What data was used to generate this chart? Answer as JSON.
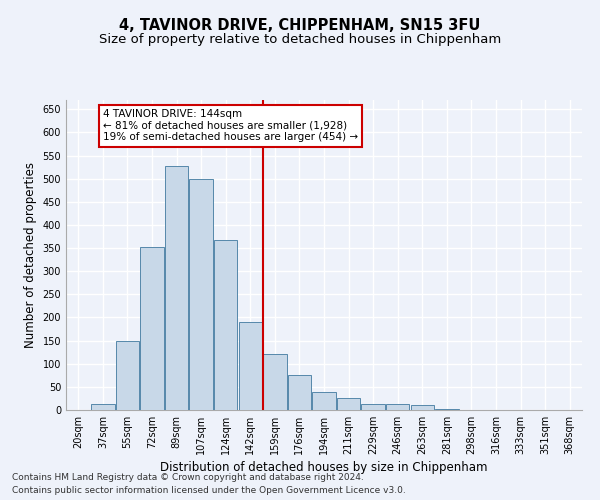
{
  "title": "4, TAVINOR DRIVE, CHIPPENHAM, SN15 3FU",
  "subtitle": "Size of property relative to detached houses in Chippenham",
  "xlabel": "Distribution of detached houses by size in Chippenham",
  "ylabel": "Number of detached properties",
  "categories": [
    "20sqm",
    "37sqm",
    "55sqm",
    "72sqm",
    "89sqm",
    "107sqm",
    "124sqm",
    "142sqm",
    "159sqm",
    "176sqm",
    "194sqm",
    "211sqm",
    "229sqm",
    "246sqm",
    "263sqm",
    "281sqm",
    "298sqm",
    "316sqm",
    "333sqm",
    "351sqm",
    "368sqm"
  ],
  "values": [
    0,
    12,
    150,
    353,
    528,
    500,
    368,
    190,
    122,
    75,
    38,
    26,
    12,
    12,
    10,
    2,
    0,
    0,
    0,
    0,
    0
  ],
  "bar_color": "#c8d8e8",
  "bar_edge_color": "#5588aa",
  "vline_x_index": 7,
  "vline_color": "#cc0000",
  "annotation_text": "4 TAVINOR DRIVE: 144sqm\n← 81% of detached houses are smaller (1,928)\n19% of semi-detached houses are larger (454) →",
  "annotation_box_color": "#ffffff",
  "annotation_box_edge_color": "#cc0000",
  "ylim": [
    0,
    670
  ],
  "yticks": [
    0,
    50,
    100,
    150,
    200,
    250,
    300,
    350,
    400,
    450,
    500,
    550,
    600,
    650
  ],
  "background_color": "#eef2fa",
  "grid_color": "#ffffff",
  "footer1": "Contains HM Land Registry data © Crown copyright and database right 2024.",
  "footer2": "Contains public sector information licensed under the Open Government Licence v3.0.",
  "title_fontsize": 10.5,
  "subtitle_fontsize": 9.5,
  "tick_fontsize": 7,
  "ylabel_fontsize": 8.5,
  "xlabel_fontsize": 8.5,
  "annotation_fontsize": 7.5,
  "footer_fontsize": 6.5
}
